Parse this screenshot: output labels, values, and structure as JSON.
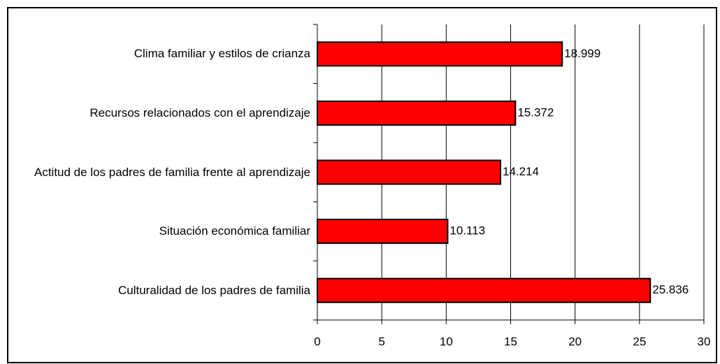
{
  "chart_data": {
    "type": "barh",
    "categories": [
      "Clima familiar y estilos de crianza",
      "Recursos relacionados con el aprendizaje",
      "Actitud de los padres de familia frente al aprendizaje",
      "Situación económica familiar",
      "Culturalidad de los padres de familia"
    ],
    "values": [
      18.999,
      15.372,
      14.214,
      10.113,
      25.836
    ],
    "color": "#ff0000",
    "xlim": [
      0,
      30
    ],
    "xticks": [
      0,
      5,
      10,
      15,
      20,
      25,
      30
    ],
    "grid": true
  }
}
